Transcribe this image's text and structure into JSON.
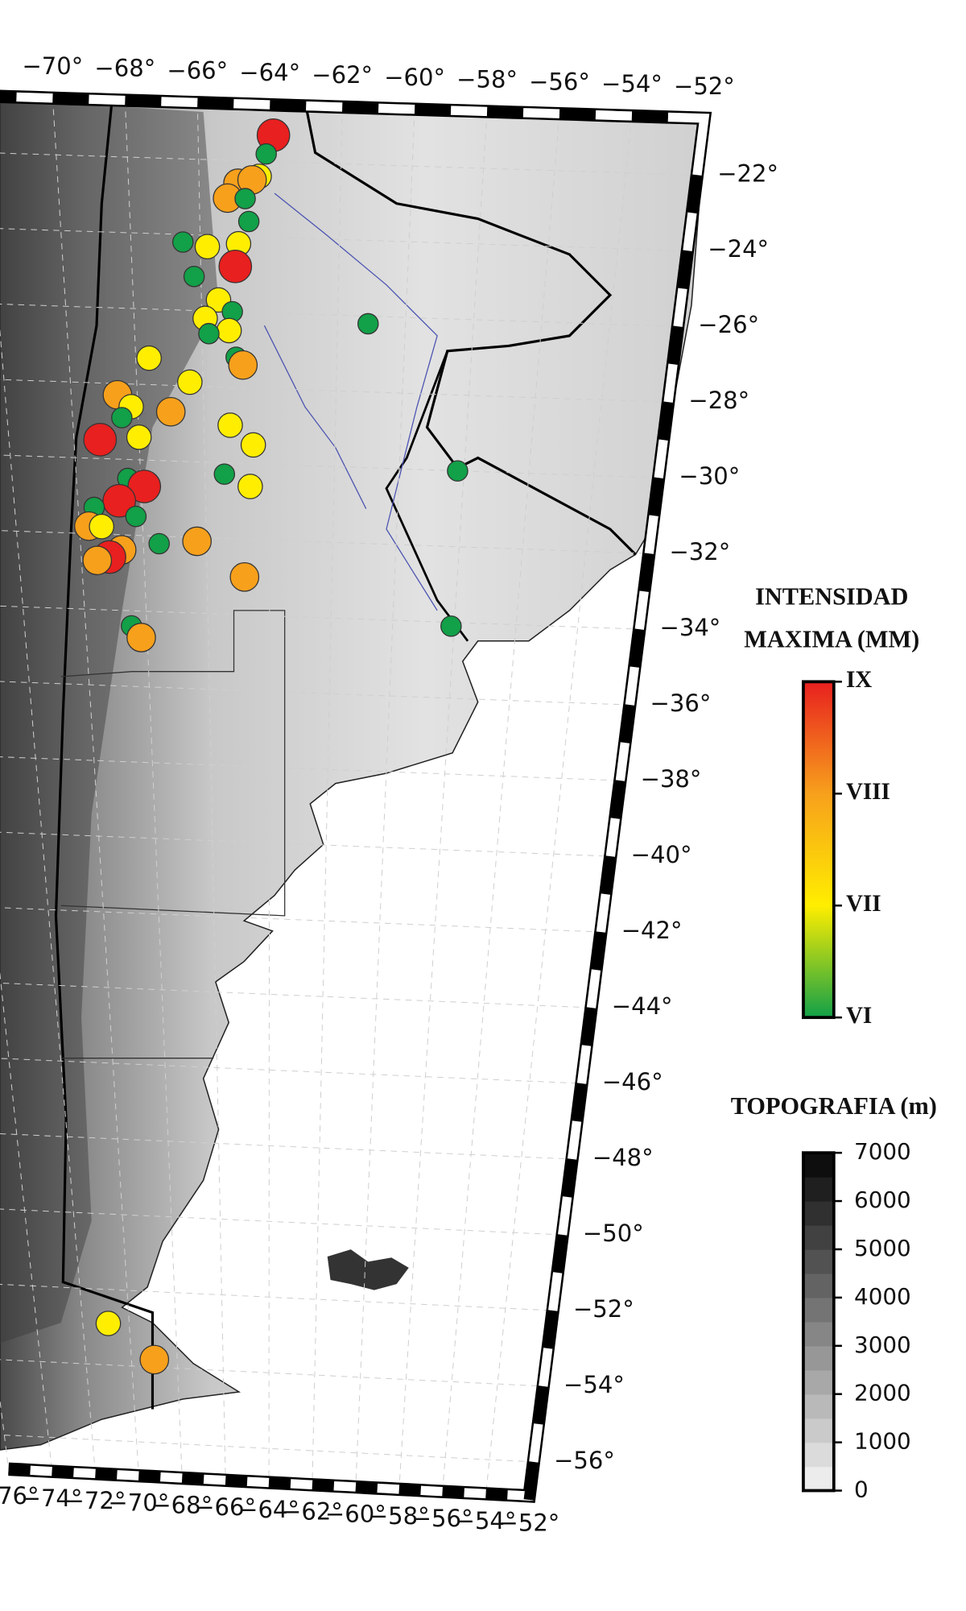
{
  "map": {
    "lonlim": [
      -76,
      -52
    ],
    "latlim": [
      -20.5,
      -56.9
    ],
    "lon_ticks_top": [
      {
        "value": -70,
        "label": "−70°"
      },
      {
        "value": -68,
        "label": "−68°"
      },
      {
        "value": -66,
        "label": "−66°"
      },
      {
        "value": -64,
        "label": "−64°"
      },
      {
        "value": -62,
        "label": "−62°"
      },
      {
        "value": -60,
        "label": "−60°"
      },
      {
        "value": -58,
        "label": "−58°"
      },
      {
        "value": -56,
        "label": "−56°"
      },
      {
        "value": -54,
        "label": "−54°"
      },
      {
        "value": -52,
        "label": "−52°"
      }
    ],
    "lon_ticks_bottom": [
      {
        "value": -76,
        "label": "−76°"
      },
      {
        "value": -74,
        "label": "−74°"
      },
      {
        "value": -72,
        "label": "−72°"
      },
      {
        "value": -70,
        "label": "−70°"
      },
      {
        "value": -68,
        "label": "−68°"
      },
      {
        "value": -66,
        "label": "−66°"
      },
      {
        "value": -64,
        "label": "−64°"
      },
      {
        "value": -62,
        "label": "−62°"
      },
      {
        "value": -60,
        "label": "−60°"
      },
      {
        "value": -58,
        "label": "−58°"
      },
      {
        "value": -56,
        "label": "−56°"
      },
      {
        "value": -54,
        "label": "−54°"
      },
      {
        "value": -52,
        "label": "−52°"
      }
    ],
    "lat_ticks": [
      {
        "value": -22,
        "label": "−22°"
      },
      {
        "value": -24,
        "label": "−24°"
      },
      {
        "value": -26,
        "label": "−26°"
      },
      {
        "value": -28,
        "label": "−28°"
      },
      {
        "value": -30,
        "label": "−30°"
      },
      {
        "value": -32,
        "label": "−32°"
      },
      {
        "value": -34,
        "label": "−34°"
      },
      {
        "value": -36,
        "label": "−36°"
      },
      {
        "value": -38,
        "label": "−38°"
      },
      {
        "value": -40,
        "label": "−40°"
      },
      {
        "value": -42,
        "label": "−42°"
      },
      {
        "value": -44,
        "label": "−44°"
      },
      {
        "value": -46,
        "label": "−46°"
      },
      {
        "value": -48,
        "label": "−48°"
      },
      {
        "value": -50,
        "label": "−50°"
      },
      {
        "value": -52,
        "label": "−52°"
      },
      {
        "value": -54,
        "label": "−54°"
      },
      {
        "value": -56,
        "label": "−56°"
      }
    ],
    "points": [
      {
        "lon": -63.9,
        "lat": -21.3,
        "intensity": 9
      },
      {
        "lon": -64.1,
        "lat": -21.8,
        "intensity": 6
      },
      {
        "lon": -64.3,
        "lat": -22.4,
        "intensity": 7
      },
      {
        "lon": -64.9,
        "lat": -22.6,
        "intensity": 8
      },
      {
        "lon": -64.5,
        "lat": -22.5,
        "intensity": 8
      },
      {
        "lon": -65.2,
        "lat": -23.0,
        "intensity": 8
      },
      {
        "lon": -64.7,
        "lat": -23.0,
        "intensity": 6
      },
      {
        "lon": -64.6,
        "lat": -23.6,
        "intensity": 6
      },
      {
        "lon": -66.5,
        "lat": -24.2,
        "intensity": 6
      },
      {
        "lon": -65.8,
        "lat": -24.3,
        "intensity": 7
      },
      {
        "lon": -64.9,
        "lat": -24.2,
        "intensity": 7
      },
      {
        "lon": -65.0,
        "lat": -24.8,
        "intensity": 9
      },
      {
        "lon": -66.2,
        "lat": -25.1,
        "intensity": 6
      },
      {
        "lon": -65.5,
        "lat": -25.7,
        "intensity": 7
      },
      {
        "lon": -65.1,
        "lat": -26.0,
        "intensity": 6
      },
      {
        "lon": -65.9,
        "lat": -26.2,
        "intensity": 7
      },
      {
        "lon": -65.2,
        "lat": -26.5,
        "intensity": 7
      },
      {
        "lon": -65.8,
        "lat": -26.6,
        "intensity": 6
      },
      {
        "lon": -61.1,
        "lat": -26.2,
        "intensity": 6
      },
      {
        "lon": -65.0,
        "lat": -27.2,
        "intensity": 6
      },
      {
        "lon": -64.8,
        "lat": -27.4,
        "intensity": 8
      },
      {
        "lon": -67.6,
        "lat": -27.3,
        "intensity": 7
      },
      {
        "lon": -66.4,
        "lat": -27.9,
        "intensity": 7
      },
      {
        "lon": -68.6,
        "lat": -28.3,
        "intensity": 8
      },
      {
        "lon": -68.2,
        "lat": -28.6,
        "intensity": 7
      },
      {
        "lon": -67.0,
        "lat": -28.7,
        "intensity": 8
      },
      {
        "lon": -68.5,
        "lat": -28.9,
        "intensity": 6
      },
      {
        "lon": -65.2,
        "lat": -29.0,
        "intensity": 7
      },
      {
        "lon": -68.0,
        "lat": -29.4,
        "intensity": 7
      },
      {
        "lon": -69.2,
        "lat": -29.5,
        "intensity": 9
      },
      {
        "lon": -64.5,
        "lat": -29.5,
        "intensity": 7
      },
      {
        "lon": -65.4,
        "lat": -30.3,
        "intensity": 6
      },
      {
        "lon": -58.2,
        "lat": -30.0,
        "intensity": 6
      },
      {
        "lon": -68.4,
        "lat": -30.5,
        "intensity": 6
      },
      {
        "lon": -67.9,
        "lat": -30.7,
        "intensity": 9
      },
      {
        "lon": -64.6,
        "lat": -30.6,
        "intensity": 7
      },
      {
        "lon": -68.7,
        "lat": -31.1,
        "intensity": 9
      },
      {
        "lon": -69.5,
        "lat": -31.3,
        "intensity": 6
      },
      {
        "lon": -68.2,
        "lat": -31.5,
        "intensity": 6
      },
      {
        "lon": -69.7,
        "lat": -31.8,
        "intensity": 8
      },
      {
        "lon": -69.3,
        "lat": -31.8,
        "intensity": 7
      },
      {
        "lon": -68.7,
        "lat": -32.4,
        "intensity": 8
      },
      {
        "lon": -67.5,
        "lat": -32.2,
        "intensity": 6
      },
      {
        "lon": -66.3,
        "lat": -32.1,
        "intensity": 8
      },
      {
        "lon": -69.1,
        "lat": -32.6,
        "intensity": 9
      },
      {
        "lon": -69.5,
        "lat": -32.7,
        "intensity": 8
      },
      {
        "lon": -64.8,
        "lat": -33.0,
        "intensity": 8
      },
      {
        "lon": -58.1,
        "lat": -34.1,
        "intensity": 6
      },
      {
        "lon": -68.5,
        "lat": -34.4,
        "intensity": 6
      },
      {
        "lon": -68.2,
        "lat": -34.7,
        "intensity": 8
      },
      {
        "lon": -70.9,
        "lat": -52.9,
        "intensity": 7
      },
      {
        "lon": -69.0,
        "lat": -53.8,
        "intensity": 8
      }
    ]
  },
  "intensity_legend": {
    "title_lines": [
      "INTENSIDAD",
      "MAXIMA (MM)"
    ],
    "ticks": [
      {
        "value": 6,
        "label": "VI"
      },
      {
        "value": 7,
        "label": "VII"
      },
      {
        "value": 8,
        "label": "VIII"
      },
      {
        "value": 9,
        "label": "IX"
      }
    ],
    "colors": [
      "#12a048",
      "#ffee00",
      "#f7a01c",
      "#e8201f"
    ]
  },
  "topo_legend": {
    "title": "TOPOGRAFIA (m)",
    "ticks": [
      0,
      1000,
      2000,
      3000,
      4000,
      5000,
      6000,
      7000
    ]
  }
}
